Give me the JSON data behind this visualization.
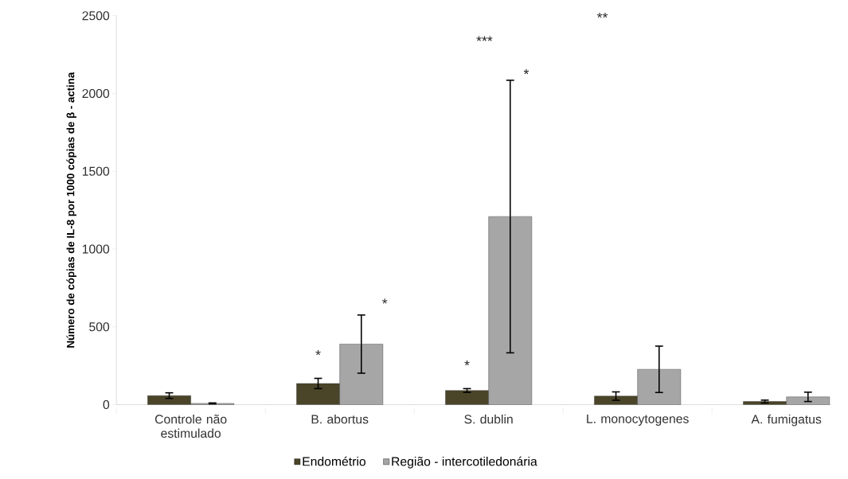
{
  "chart_data": {
    "type": "bar",
    "ylabel": "Número de cópias de IL-8 por 1000 cópias de β - actina",
    "categories": [
      "Controle não estimulado",
      "B. abortus",
      "S. dublin",
      "L. monocytogenes",
      "A. fumigatus"
    ],
    "series": [
      {
        "name": "Endométrio",
        "color": "#4a4429",
        "values": [
          58,
          136,
          91,
          55,
          20
        ],
        "errors": [
          18,
          33,
          12,
          27,
          9
        ]
      },
      {
        "name": "Região - intercotiledonária",
        "color": "#a6a6a6",
        "values": [
          8,
          389,
          1209,
          227,
          50
        ],
        "errors": [
          3,
          187,
          876,
          149,
          30
        ]
      }
    ],
    "ylim": [
      0,
      2500
    ],
    "yticks": [
      0,
      500,
      1000,
      1500,
      2000,
      2500
    ],
    "grid": false,
    "legend": "bottom",
    "annotations": [
      {
        "text": "*",
        "x": "B. abortus",
        "y": 136
      },
      "*",
      {
        "text": "*",
        "x": "S. dublin",
        "y": 91
      },
      "*",
      "***",
      "**"
    ]
  }
}
